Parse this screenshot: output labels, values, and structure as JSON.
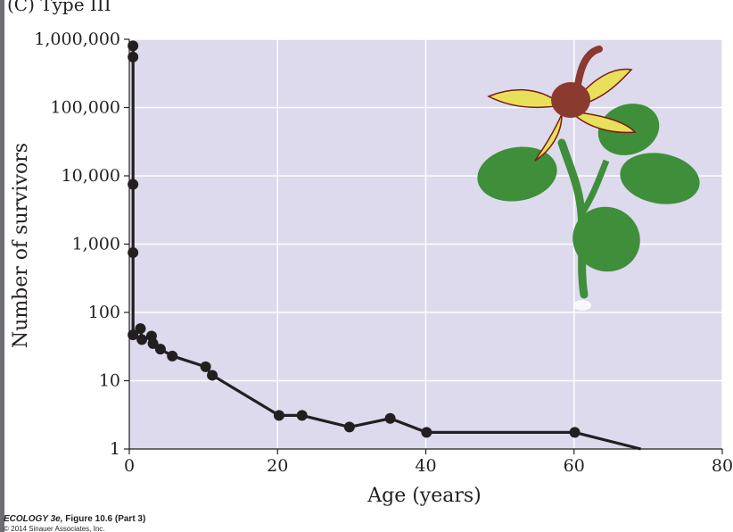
{
  "figure": {
    "panel_label": "(C)  Type III",
    "caption_book": "ECOLOGY 3e,",
    "caption_figure": " Figure 10.6 (Part 3)",
    "copyright": "© 2014 Sinauer Associates, Inc."
  },
  "colors": {
    "plot_background": "#dcdaec",
    "grid": "#ffffff",
    "line": "#231f20",
    "text": "#231f20",
    "leaf": "#3e8e3a",
    "petal": "#e8e05a"
  },
  "icons": {
    "plant_illustration": "plant-icon"
  },
  "chart_data": {
    "type": "line",
    "title": "",
    "xlabel": "Age (years)",
    "ylabel": "Number of survivors",
    "xlim": [
      0,
      80
    ],
    "ylim": [
      1,
      1000000
    ],
    "yscale": "log",
    "grid": true,
    "x_ticks": [
      0,
      20,
      40,
      60,
      80
    ],
    "x_tick_labels": [
      "0",
      "20",
      "40",
      "60",
      "80"
    ],
    "y_ticks": [
      1,
      10,
      100,
      1000,
      10000,
      100000,
      1000000
    ],
    "y_tick_labels": [
      "1",
      "10",
      "100",
      "1,000",
      "10,000",
      "100,000",
      "1,000,000"
    ],
    "series": [
      {
        "x": [
          0.5,
          0.5,
          0.5,
          0.5,
          0.5,
          1.5,
          1.7,
          3,
          3.2,
          4.2,
          5.8,
          10.3,
          11.2,
          20.2,
          23.3,
          29.7,
          35.2,
          40.1,
          60.1,
          69
        ],
        "y": [
          800000,
          550000,
          7500,
          750,
          47,
          58,
          40,
          45,
          35,
          29,
          23,
          16,
          12,
          3.1,
          3.1,
          2.1,
          2.8,
          1.75,
          1.75,
          1
        ],
        "markers": [
          true,
          true,
          true,
          true,
          true,
          true,
          true,
          true,
          true,
          true,
          true,
          true,
          true,
          true,
          true,
          true,
          true,
          true,
          true,
          false
        ]
      }
    ]
  }
}
